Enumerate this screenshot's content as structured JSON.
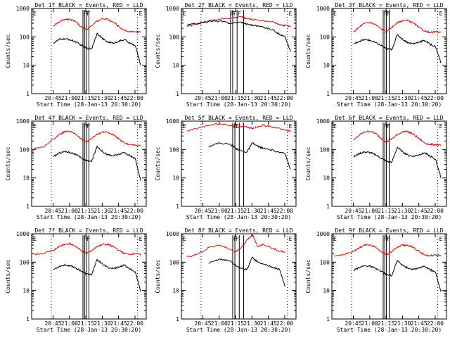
{
  "chart_data": [
    {
      "type": "line",
      "title": "Det 1f BLACK = Events, RED = LLD",
      "xlabel": "Start Time (28-Jan-13 20:30:20)",
      "ylabel": "Counts/sec",
      "yscale": "log",
      "ylim": [
        1,
        1000
      ],
      "yticks": [
        "1",
        "10",
        "100",
        "1000"
      ],
      "xticks": [
        "20:45",
        "21:00",
        "21:15",
        "21:30",
        "21:45",
        "22:00"
      ],
      "xlim_minutes": [
        -5,
        100
      ],
      "x_minutes_since_start": [
        15,
        20,
        25,
        30,
        35,
        40,
        45,
        50,
        55,
        60,
        65,
        70,
        75,
        80,
        85,
        90,
        95
      ],
      "series": [
        {
          "name": "LLD",
          "color": "#d01010",
          "values": [
            240,
            330,
            410,
            420,
            350,
            230,
            180,
            250,
            350,
            430,
            410,
            330,
            230,
            170,
            150,
            150,
            145
          ]
        },
        {
          "name": "Events",
          "color": "#000000",
          "values": [
            60,
            80,
            85,
            80,
            68,
            52,
            40,
            38,
            135,
            85,
            65,
            60,
            70,
            80,
            60,
            48,
            10
          ]
        }
      ],
      "event_markers_minutes": [
        42,
        43.5,
        45,
        47.5
      ],
      "event_labels": [
        "F",
        "F",
        "F"
      ],
      "eclipse_labels": [
        "E",
        "E"
      ],
      "dotted_lines_minutes": [
        13,
        92
      ]
    },
    {
      "type": "line",
      "title": "Det 2f BLACK = Events, RED = LLD",
      "xlabel": "Start Time (28-Jan-13 20:30:20)",
      "ylabel": "Counts/sec",
      "yscale": "log",
      "ylim": [
        1,
        1000
      ],
      "yticks": [
        "1",
        "10",
        "100",
        "1000"
      ],
      "xticks": [
        "20:45",
        "21:00",
        "21:15",
        "21:30",
        "21:45",
        "22:00"
      ],
      "xlim_minutes": [
        -5,
        100
      ],
      "x_minutes_since_start": [
        0,
        10,
        20,
        30,
        40,
        50,
        55,
        60,
        70,
        80,
        85,
        90,
        95
      ],
      "series": [
        {
          "name": "LLD",
          "color": "#d01010",
          "values": [
            230,
            280,
            360,
            420,
            470,
            500,
            440,
            400,
            370,
            320,
            260,
            250,
            240
          ]
        },
        {
          "name": "Events",
          "color": "#000000",
          "values": [
            260,
            300,
            350,
            360,
            300,
            330,
            280,
            260,
            220,
            170,
            120,
            100,
            30
          ]
        }
      ],
      "event_markers_minutes": [
        40,
        42,
        46,
        52
      ],
      "event_labels": [
        "F",
        "F",
        "F"
      ],
      "eclipse_labels": [
        "E",
        "E"
      ],
      "dotted_lines_minutes": [
        13,
        92
      ]
    },
    {
      "type": "line",
      "title": "Det 3f BLACK = Events, RED = LLD",
      "xlabel": "Start Time (28-Jan-13 20:30:20)",
      "ylabel": "Counts/sec",
      "yscale": "log",
      "ylim": [
        1,
        1000
      ],
      "yticks": [
        "1",
        "10",
        "100",
        "1000"
      ],
      "xticks": [
        "20:45",
        "21:00",
        "21:15",
        "21:30",
        "21:45",
        "22:00"
      ],
      "xlim_minutes": [
        -5,
        100
      ],
      "x_minutes_since_start": [
        15,
        20,
        25,
        30,
        35,
        40,
        45,
        50,
        55,
        60,
        65,
        70,
        75,
        80,
        85,
        90,
        95
      ],
      "series": [
        {
          "name": "LLD",
          "color": "#d01010",
          "values": [
            150,
            220,
            300,
            320,
            270,
            190,
            150,
            220,
            310,
            380,
            370,
            300,
            210,
            160,
            140,
            150,
            145
          ]
        },
        {
          "name": "Events",
          "color": "#000000",
          "values": [
            55,
            70,
            80,
            75,
            62,
            50,
            38,
            36,
            120,
            80,
            62,
            58,
            66,
            75,
            55,
            45,
            12
          ]
        }
      ],
      "event_markers_minutes": [
        42,
        43.5,
        45,
        47.5
      ],
      "event_labels": [
        "F",
        "F",
        "F"
      ],
      "eclipse_labels": [
        "E",
        "E"
      ],
      "dotted_lines_minutes": [
        13,
        92
      ]
    },
    {
      "type": "line",
      "title": "Det 4f BLACK = Events, RED = LLD",
      "xlabel": "Start Time (28-Jan-13 20:30:20)",
      "ylabel": "Counts/sec",
      "yscale": "log",
      "ylim": [
        1,
        1000
      ],
      "yticks": [
        "1",
        "10",
        "100",
        "1000"
      ],
      "xticks": [
        "20:45",
        "21:00",
        "21:15",
        "21:30",
        "21:45",
        "22:00"
      ],
      "xlim_minutes": [
        -5,
        100
      ],
      "x_minutes_since_start": [
        -3,
        5,
        15,
        20,
        25,
        30,
        35,
        40,
        45,
        50,
        55,
        60,
        65,
        70,
        75,
        80,
        85,
        90,
        95
      ],
      "series": [
        {
          "name": "LLD",
          "color": "#d01010",
          "values": [
            110,
            120,
            230,
            330,
            420,
            430,
            360,
            240,
            180,
            250,
            340,
            420,
            400,
            320,
            230,
            170,
            150,
            140,
            135
          ]
        },
        {
          "name": "Events",
          "color": "#000000",
          "values": [
            null,
            null,
            55,
            75,
            85,
            80,
            68,
            52,
            40,
            38,
            130,
            85,
            65,
            60,
            68,
            78,
            60,
            48,
            8
          ]
        }
      ],
      "event_markers_minutes": [
        42,
        43.5,
        45,
        47.5
      ],
      "event_labels": [
        "F",
        "F",
        "F"
      ],
      "eclipse_labels": [
        "E",
        "E"
      ],
      "dotted_lines_minutes": [
        13,
        92
      ]
    },
    {
      "type": "line",
      "title": "Det 5f BLACK = Events, RED = LLD",
      "xlabel": "Start Time (28-Jan-13 20:30:20)",
      "ylabel": "Counts/sec",
      "yscale": "log",
      "ylim": [
        1,
        1000
      ],
      "yticks": [
        "1",
        "10",
        "100",
        "1000"
      ],
      "xticks": [
        "20:45",
        "21:00",
        "21:15",
        "21:30",
        "21:45",
        "22:00"
      ],
      "xlim_minutes": [
        -5,
        100
      ],
      "x_minutes_since_start": [
        0,
        10,
        20,
        30,
        40,
        45,
        50,
        55,
        60,
        65,
        70,
        80,
        90,
        95
      ],
      "series": [
        {
          "name": "LLD",
          "color": "#d01010",
          "values": [
            450,
            560,
            720,
            800,
            700,
            600,
            650,
            600,
            560,
            640,
            720,
            600,
            480,
            450
          ]
        },
        {
          "name": "Events",
          "color": "#000000",
          "values": [
            null,
            null,
            130,
            170,
            150,
            110,
            90,
            80,
            170,
            130,
            110,
            90,
            70,
            20
          ]
        }
      ],
      "event_markers_minutes": [
        42,
        44,
        48,
        52
      ],
      "event_labels": [
        "F",
        "F"
      ],
      "eclipse_labels": [
        "E",
        "E"
      ],
      "dotted_lines_minutes": [
        13,
        92
      ]
    },
    {
      "type": "line",
      "title": "Det 6f BLACK = Events, RED = LLD",
      "xlabel": "Start Time (28-Jan-13 20:30:20)",
      "ylabel": "Counts/sec",
      "yscale": "log",
      "ylim": [
        1,
        1000
      ],
      "yticks": [
        "1",
        "10",
        "100",
        "1000"
      ],
      "xticks": [
        "20:45",
        "21:00",
        "21:15",
        "21:30",
        "21:45",
        "22:00"
      ],
      "xlim_minutes": [
        -5,
        100
      ],
      "x_minutes_since_start": [
        15,
        20,
        25,
        30,
        35,
        40,
        45,
        50,
        55,
        60,
        65,
        70,
        75,
        80,
        85,
        90,
        95
      ],
      "series": [
        {
          "name": "LLD",
          "color": "#d01010",
          "values": [
            210,
            320,
            420,
            440,
            370,
            250,
            180,
            240,
            330,
            430,
            420,
            340,
            240,
            170,
            150,
            150,
            140
          ]
        },
        {
          "name": "Events",
          "color": "#000000",
          "values": [
            55,
            72,
            82,
            78,
            66,
            50,
            38,
            36,
            120,
            82,
            62,
            58,
            66,
            76,
            58,
            45,
            10
          ]
        }
      ],
      "event_markers_minutes": [
        42,
        43.5,
        45,
        47.5
      ],
      "event_labels": [
        "F",
        "F",
        "F"
      ],
      "eclipse_labels": [
        "E",
        "E"
      ],
      "dotted_lines_minutes": [
        13,
        92
      ]
    },
    {
      "type": "line",
      "title": "Det 7f BLACK = Events, RED = LLD",
      "xlabel": "Start Time (28-Jan-13 20:30:20)",
      "ylabel": "Counts/sec",
      "yscale": "log",
      "ylim": [
        1,
        1000
      ],
      "yticks": [
        "1",
        "10",
        "100",
        "1000"
      ],
      "xticks": [
        "20:45",
        "21:00",
        "21:15",
        "21:30",
        "21:45",
        "22:00"
      ],
      "xlim_minutes": [
        -5,
        100
      ],
      "x_minutes_since_start": [
        -3,
        5,
        15,
        20,
        25,
        30,
        35,
        40,
        45,
        50,
        55,
        60,
        65,
        70,
        75,
        80,
        85,
        90,
        95
      ],
      "series": [
        {
          "name": "LLD",
          "color": "#d01010",
          "values": [
            190,
            200,
            260,
            350,
            430,
            440,
            370,
            260,
            200,
            260,
            350,
            430,
            420,
            350,
            260,
            200,
            190,
            200,
            190
          ]
        },
        {
          "name": "Events",
          "color": "#000000",
          "values": [
            null,
            null,
            55,
            70,
            80,
            76,
            64,
            50,
            38,
            36,
            125,
            85,
            64,
            60,
            68,
            78,
            58,
            46,
            9
          ]
        }
      ],
      "event_markers_minutes": [
        42,
        43.5,
        45,
        47.5
      ],
      "event_labels": [
        "F",
        "F",
        "F"
      ],
      "eclipse_labels": [
        "E",
        "E"
      ],
      "dotted_lines_minutes": [
        13,
        92
      ]
    },
    {
      "type": "line",
      "title": "Det 8f BLACK = Events, RED = LLD",
      "xlabel": "Start Time (28-Jan-13 20:30:20)",
      "ylabel": "Counts/sec",
      "yscale": "log",
      "ylim": [
        1,
        1000
      ],
      "yticks": [
        "1",
        "10",
        "100",
        "1000"
      ],
      "xticks": [
        "20:45",
        "21:00",
        "21:15",
        "21:30",
        "21:45",
        "22:00"
      ],
      "xlim_minutes": [
        -5,
        100
      ],
      "x_minutes_since_start": [
        0,
        10,
        20,
        30,
        40,
        45,
        50,
        55,
        60,
        65,
        70,
        80,
        85,
        90
      ],
      "series": [
        {
          "name": "LLD",
          "color": "#d01010",
          "values": [
            150,
            190,
            330,
            400,
            280,
            230,
            340,
            600,
            950,
            350,
            420,
            300,
            240,
            230
          ]
        },
        {
          "name": "Events",
          "color": "#000000",
          "values": [
            null,
            null,
            90,
            130,
            110,
            75,
            60,
            55,
            150,
            100,
            85,
            65,
            55,
            14
          ]
        }
      ],
      "event_markers_minutes": [
        42,
        44,
        48,
        52
      ],
      "event_labels": [
        "F",
        "F"
      ],
      "eclipse_labels": [
        "E",
        "E"
      ],
      "dotted_lines_minutes": [
        13,
        92
      ]
    },
    {
      "type": "line",
      "title": "Det 9f BLACK = Events, RED = LLD",
      "xlabel": "Start Time (28-Jan-13 20:30:20)",
      "ylabel": "Counts/sec",
      "yscale": "log",
      "ylim": [
        1,
        1000
      ],
      "yticks": [
        "1",
        "10",
        "100",
        "1000"
      ],
      "xticks": [
        "20:45",
        "21:00",
        "21:15",
        "21:30",
        "21:45",
        "22:00"
      ],
      "xlim_minutes": [
        -5,
        100
      ],
      "x_minutes_since_start": [
        -3,
        5,
        15,
        20,
        25,
        30,
        35,
        40,
        45,
        50,
        55,
        60,
        65,
        70,
        75,
        80,
        85,
        90,
        95
      ],
      "series": [
        {
          "name": "LLD",
          "color": "#d01010",
          "values": [
            170,
            180,
            240,
            320,
            400,
            410,
            340,
            240,
            180,
            240,
            330,
            400,
            390,
            320,
            240,
            180,
            170,
            180,
            170
          ]
        },
        {
          "name": "Events",
          "color": "#000000",
          "values": [
            null,
            null,
            50,
            65,
            76,
            72,
            60,
            48,
            36,
            34,
            115,
            80,
            60,
            56,
            62,
            72,
            55,
            44,
            9
          ]
        }
      ],
      "event_markers_minutes": [
        42,
        43.5,
        45,
        47.5
      ],
      "event_labels": [
        "F",
        "F",
        "F"
      ],
      "eclipse_labels": [
        "E",
        "E"
      ],
      "dotted_lines_minutes": [
        13,
        92
      ]
    }
  ]
}
